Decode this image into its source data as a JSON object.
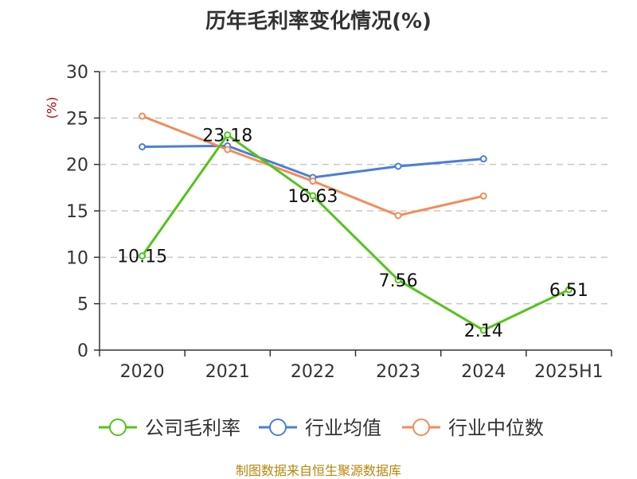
{
  "chart_data": {
    "type": "line",
    "title": "历年毛利率变化情况(%)",
    "ylabel": "(%)",
    "xlabel": "",
    "categories": [
      "2020",
      "2021",
      "2022",
      "2023",
      "2024",
      "2025H1"
    ],
    "ylim": [
      0,
      30
    ],
    "yticks": [
      0,
      5,
      10,
      15,
      20,
      25,
      30
    ],
    "grid": true,
    "legend_position": "bottom",
    "series": [
      {
        "name": "公司毛利率",
        "color": "#52c41a",
        "values": [
          10.15,
          23.18,
          16.63,
          7.56,
          2.14,
          6.51
        ],
        "labels": [
          "10.15",
          "23.18",
          "16.63",
          "7.56",
          "2.14",
          "6.51"
        ]
      },
      {
        "name": "行业均值",
        "color": "#4a7fd8",
        "values": [
          21.9,
          22.0,
          18.6,
          19.8,
          20.6,
          null
        ]
      },
      {
        "name": "行业中位数",
        "color": "#f28c5a",
        "values": [
          25.2,
          21.6,
          18.2,
          14.5,
          16.6,
          null
        ]
      }
    ]
  },
  "source": "制图数据来自恒生聚源数据库"
}
